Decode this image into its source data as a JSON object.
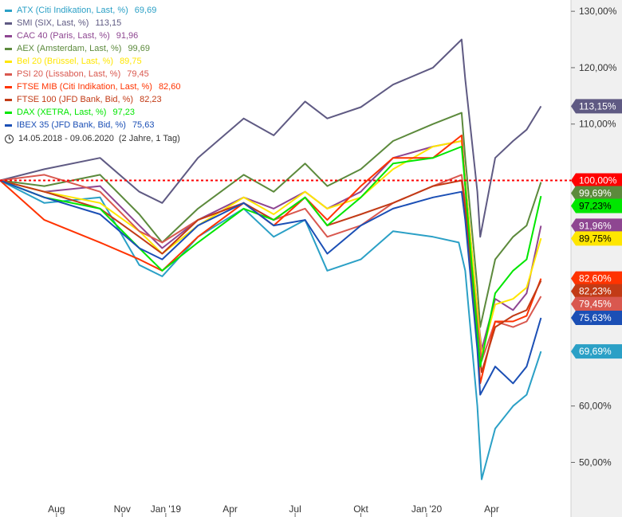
{
  "chart_data": {
    "type": "line",
    "date_range": "14.05.2018 - 09.06.2020",
    "range_note": "(2 Jahre, 1 Tag)",
    "x_tick_labels": [
      "Aug",
      "Nov",
      "Jan '19",
      "Apr",
      "Jul",
      "Okt",
      "Jan '20",
      "Apr"
    ],
    "x_ticks": [
      "2018-08-01",
      "2018-11-01",
      "2019-01-01",
      "2019-04-01",
      "2019-07-01",
      "2019-10-01",
      "2020-01-01",
      "2020-04-01"
    ],
    "y_ticks": [
      50,
      60,
      110,
      120,
      130
    ],
    "y_tick_labels": [
      "50,00%",
      "60,00%",
      "110,00%",
      "120,00%",
      "130,00%"
    ],
    "ylim": [
      43,
      132
    ],
    "xlim": [
      "2018-05-14",
      "2020-07-21"
    ],
    "reference_line": {
      "value": 100,
      "label": "100,00%",
      "color": "#ff0000"
    },
    "series": [
      {
        "name": "ATX (Citi Indikation, Last, %)",
        "last": "69,69",
        "last_label": "69,69%",
        "color": "#2ba0c6",
        "points": [
          [
            "2018-05-14",
            100
          ],
          [
            "2018-07-15",
            96
          ],
          [
            "2018-10-01",
            97
          ],
          [
            "2018-11-25",
            85
          ],
          [
            "2018-12-27",
            83
          ],
          [
            "2019-02-15",
            90
          ],
          [
            "2019-04-20",
            95
          ],
          [
            "2019-06-01",
            90
          ],
          [
            "2019-07-15",
            93
          ],
          [
            "2019-08-15",
            84
          ],
          [
            "2019-10-01",
            86
          ],
          [
            "2019-11-15",
            91
          ],
          [
            "2020-01-10",
            90
          ],
          [
            "2020-02-15",
            89
          ],
          [
            "2020-02-24",
            84
          ],
          [
            "2020-03-12",
            60
          ],
          [
            "2020-03-18",
            47
          ],
          [
            "2020-04-06",
            56
          ],
          [
            "2020-05-01",
            60
          ],
          [
            "2020-05-20",
            62
          ],
          [
            "2020-06-09",
            69.69
          ]
        ]
      },
      {
        "name": "SMI (SIX, Last, %)",
        "last": "113,15",
        "last_label": "113,15%",
        "color": "#5f5a83",
        "points": [
          [
            "2018-05-14",
            100
          ],
          [
            "2018-07-15",
            102
          ],
          [
            "2018-10-01",
            104
          ],
          [
            "2018-11-25",
            98
          ],
          [
            "2018-12-27",
            96
          ],
          [
            "2019-02-15",
            104
          ],
          [
            "2019-04-20",
            111
          ],
          [
            "2019-06-01",
            108
          ],
          [
            "2019-07-15",
            114
          ],
          [
            "2019-08-15",
            111
          ],
          [
            "2019-10-01",
            113
          ],
          [
            "2019-11-15",
            117
          ],
          [
            "2020-01-10",
            120
          ],
          [
            "2020-02-19",
            125
          ],
          [
            "2020-02-24",
            118
          ],
          [
            "2020-03-12",
            98
          ],
          [
            "2020-03-16",
            90
          ],
          [
            "2020-04-06",
            104
          ],
          [
            "2020-05-01",
            107
          ],
          [
            "2020-05-20",
            109
          ],
          [
            "2020-06-09",
            113.15
          ]
        ]
      },
      {
        "name": "CAC 40 (Paris, Last, %)",
        "last": "91,96",
        "last_label": "91,96%",
        "color": "#8e4691",
        "points": [
          [
            "2018-05-14",
            100
          ],
          [
            "2018-07-15",
            98
          ],
          [
            "2018-10-01",
            99
          ],
          [
            "2018-11-25",
            92
          ],
          [
            "2018-12-27",
            88
          ],
          [
            "2019-02-15",
            93
          ],
          [
            "2019-04-20",
            97
          ],
          [
            "2019-06-01",
            95
          ],
          [
            "2019-07-15",
            98
          ],
          [
            "2019-08-15",
            95
          ],
          [
            "2019-10-01",
            98
          ],
          [
            "2019-11-15",
            104
          ],
          [
            "2020-01-10",
            106
          ],
          [
            "2020-02-19",
            107
          ],
          [
            "2020-02-24",
            100
          ],
          [
            "2020-03-12",
            77
          ],
          [
            "2020-03-18",
            70
          ],
          [
            "2020-04-06",
            79
          ],
          [
            "2020-05-01",
            77
          ],
          [
            "2020-05-20",
            80
          ],
          [
            "2020-06-09",
            91.96
          ]
        ]
      },
      {
        "name": "AEX (Amsterdam, Last, %)",
        "last": "99,69",
        "last_label": "99,69%",
        "color": "#5c8a3c",
        "points": [
          [
            "2018-05-14",
            100
          ],
          [
            "2018-07-15",
            99
          ],
          [
            "2018-10-01",
            101
          ],
          [
            "2018-11-25",
            94
          ],
          [
            "2018-12-27",
            89
          ],
          [
            "2019-02-15",
            95
          ],
          [
            "2019-04-20",
            101
          ],
          [
            "2019-06-01",
            98
          ],
          [
            "2019-07-15",
            103
          ],
          [
            "2019-08-15",
            99
          ],
          [
            "2019-10-01",
            102
          ],
          [
            "2019-11-15",
            107
          ],
          [
            "2020-01-10",
            110
          ],
          [
            "2020-02-19",
            112
          ],
          [
            "2020-02-24",
            104
          ],
          [
            "2020-03-12",
            81
          ],
          [
            "2020-03-16",
            74
          ],
          [
            "2020-04-06",
            86
          ],
          [
            "2020-05-01",
            90
          ],
          [
            "2020-05-20",
            92
          ],
          [
            "2020-06-09",
            99.69
          ]
        ]
      },
      {
        "name": "Bel 20 (Brüssel, Last, %)",
        "last": "89,75",
        "last_label": "89,75%",
        "color": "#ffe600",
        "points": [
          [
            "2018-05-14",
            100
          ],
          [
            "2018-07-15",
            98
          ],
          [
            "2018-10-01",
            96
          ],
          [
            "2018-11-25",
            91
          ],
          [
            "2018-12-27",
            87
          ],
          [
            "2019-02-15",
            92
          ],
          [
            "2019-04-20",
            97
          ],
          [
            "2019-06-01",
            94
          ],
          [
            "2019-07-15",
            98
          ],
          [
            "2019-08-15",
            95
          ],
          [
            "2019-10-01",
            97
          ],
          [
            "2019-11-15",
            102
          ],
          [
            "2020-01-10",
            106
          ],
          [
            "2020-02-19",
            107
          ],
          [
            "2020-02-24",
            100
          ],
          [
            "2020-03-12",
            77
          ],
          [
            "2020-03-18",
            69
          ],
          [
            "2020-04-06",
            78
          ],
          [
            "2020-05-01",
            79
          ],
          [
            "2020-05-20",
            81
          ],
          [
            "2020-06-09",
            89.75
          ]
        ]
      },
      {
        "name": "PSI 20 (Lissabon, Last, %)",
        "last": "79,45",
        "last_label": "79,45%",
        "color": "#d9584f",
        "points": [
          [
            "2018-05-14",
            100
          ],
          [
            "2018-07-15",
            101
          ],
          [
            "2018-10-01",
            98
          ],
          [
            "2018-11-25",
            91
          ],
          [
            "2018-12-27",
            89
          ],
          [
            "2019-02-15",
            93
          ],
          [
            "2019-04-20",
            96
          ],
          [
            "2019-06-01",
            93
          ],
          [
            "2019-07-15",
            95
          ],
          [
            "2019-08-15",
            90
          ],
          [
            "2019-10-01",
            92
          ],
          [
            "2019-11-15",
            96
          ],
          [
            "2020-01-10",
            99
          ],
          [
            "2020-02-19",
            101
          ],
          [
            "2020-02-24",
            96
          ],
          [
            "2020-03-12",
            75
          ],
          [
            "2020-03-18",
            68
          ],
          [
            "2020-04-06",
            75
          ],
          [
            "2020-05-01",
            74
          ],
          [
            "2020-05-20",
            75
          ],
          [
            "2020-06-09",
            79.45
          ]
        ]
      },
      {
        "name": "FTSE MIB (Citi Indikation, Last, %)",
        "last": "82,60",
        "last_label": "82,60%",
        "color": "#ff3300",
        "points": [
          [
            "2018-05-14",
            100
          ],
          [
            "2018-07-15",
            93
          ],
          [
            "2018-10-01",
            89
          ],
          [
            "2018-11-25",
            86
          ],
          [
            "2018-12-27",
            84
          ],
          [
            "2019-02-15",
            90
          ],
          [
            "2019-04-20",
            96
          ],
          [
            "2019-06-01",
            92
          ],
          [
            "2019-07-15",
            97
          ],
          [
            "2019-08-15",
            93
          ],
          [
            "2019-10-01",
            99
          ],
          [
            "2019-11-15",
            104
          ],
          [
            "2020-01-10",
            104
          ],
          [
            "2020-02-19",
            108
          ],
          [
            "2020-02-24",
            99
          ],
          [
            "2020-03-12",
            72
          ],
          [
            "2020-03-16",
            64
          ],
          [
            "2020-04-06",
            75
          ],
          [
            "2020-05-01",
            75
          ],
          [
            "2020-05-20",
            76
          ],
          [
            "2020-06-09",
            82.6
          ]
        ]
      },
      {
        "name": "FTSE 100 (JFD Bank, Bid, %)",
        "last": "82,23",
        "last_label": "82,23%",
        "color": "#c23b16",
        "points": [
          [
            "2018-05-14",
            100
          ],
          [
            "2018-07-15",
            98
          ],
          [
            "2018-10-01",
            95
          ],
          [
            "2018-11-25",
            90
          ],
          [
            "2018-12-27",
            87
          ],
          [
            "2019-02-15",
            93
          ],
          [
            "2019-04-20",
            96
          ],
          [
            "2019-06-01",
            93
          ],
          [
            "2019-07-15",
            97
          ],
          [
            "2019-08-15",
            92
          ],
          [
            "2019-10-01",
            94
          ],
          [
            "2019-11-15",
            96
          ],
          [
            "2020-01-10",
            99
          ],
          [
            "2020-02-19",
            100
          ],
          [
            "2020-02-24",
            95
          ],
          [
            "2020-03-12",
            72
          ],
          [
            "2020-03-18",
            66
          ],
          [
            "2020-04-06",
            74
          ],
          [
            "2020-05-01",
            76
          ],
          [
            "2020-05-20",
            77
          ],
          [
            "2020-06-09",
            82.23
          ]
        ]
      },
      {
        "name": "DAX (XETRA, Last, %)",
        "last": "97,23",
        "last_label": "97,23%",
        "color": "#00e600",
        "points": [
          [
            "2018-05-14",
            100
          ],
          [
            "2018-07-15",
            97
          ],
          [
            "2018-10-01",
            95
          ],
          [
            "2018-11-25",
            88
          ],
          [
            "2018-12-27",
            84
          ],
          [
            "2019-02-15",
            89
          ],
          [
            "2019-04-20",
            95
          ],
          [
            "2019-06-01",
            93
          ],
          [
            "2019-07-15",
            97
          ],
          [
            "2019-08-15",
            92
          ],
          [
            "2019-10-01",
            97
          ],
          [
            "2019-11-15",
            103
          ],
          [
            "2020-01-10",
            104
          ],
          [
            "2020-02-19",
            106
          ],
          [
            "2020-02-24",
            99
          ],
          [
            "2020-03-12",
            73
          ],
          [
            "2020-03-16",
            67
          ],
          [
            "2020-04-06",
            80
          ],
          [
            "2020-05-01",
            84
          ],
          [
            "2020-05-20",
            86
          ],
          [
            "2020-06-09",
            97.23
          ]
        ]
      },
      {
        "name": "IBEX 35 (JFD Bank, Bid, %)",
        "last": "75,63",
        "last_label": "75,63%",
        "color": "#1b4fb5",
        "points": [
          [
            "2018-05-14",
            100
          ],
          [
            "2018-07-15",
            97
          ],
          [
            "2018-10-01",
            94
          ],
          [
            "2018-11-25",
            88
          ],
          [
            "2018-12-27",
            86
          ],
          [
            "2019-02-15",
            92
          ],
          [
            "2019-04-20",
            96
          ],
          [
            "2019-06-01",
            92
          ],
          [
            "2019-07-15",
            93
          ],
          [
            "2019-08-15",
            87
          ],
          [
            "2019-10-01",
            92
          ],
          [
            "2019-11-15",
            95
          ],
          [
            "2020-01-10",
            97
          ],
          [
            "2020-02-19",
            98
          ],
          [
            "2020-02-24",
            93
          ],
          [
            "2020-03-12",
            70
          ],
          [
            "2020-03-16",
            62
          ],
          [
            "2020-04-06",
            67
          ],
          [
            "2020-05-01",
            64
          ],
          [
            "2020-05-20",
            67
          ],
          [
            "2020-06-09",
            75.63
          ]
        ]
      }
    ]
  }
}
